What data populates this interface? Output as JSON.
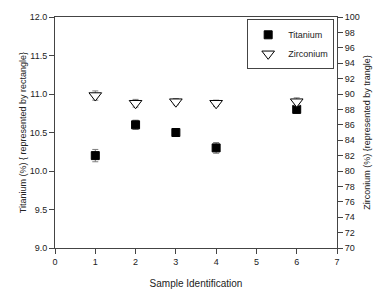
{
  "chart_data": {
    "type": "scatter",
    "x": [
      1,
      2,
      3,
      4,
      6
    ],
    "xlabel": "Sample Identification",
    "ylabel": "Titanium (%) { represented by rectangle}",
    "y2label": "Zirconium (%) {represented by trangle}",
    "xlim": [
      0,
      7
    ],
    "xticks": [
      0,
      1,
      2,
      3,
      4,
      5,
      6,
      7
    ],
    "ylim": [
      9.0,
      12.0
    ],
    "yticks": [
      {
        "value": 9.0,
        "label": "9.0"
      },
      9.5,
      {
        "value": 10.0,
        "label": "10.0"
      },
      10.5,
      {
        "value": 11.0,
        "label": "11.0"
      },
      11.5,
      {
        "value": 12.0,
        "label": "12.0"
      }
    ],
    "y2lim": [
      70,
      100
    ],
    "y2ticks": [
      70,
      72,
      74,
      76,
      78,
      80,
      82,
      84,
      86,
      88,
      90,
      92,
      94,
      96,
      98,
      100
    ],
    "series": [
      {
        "name": "Titanium",
        "color": "black",
        "marker": "square",
        "values": [
          10.2,
          10.6,
          10.5,
          10.3,
          10.8
        ],
        "errors": [
          0.08,
          0.06,
          0.05,
          0.07,
          0.05
        ]
      },
      {
        "name": "Zirconium",
        "color": "white",
        "marker": "triangle-down",
        "axis": "y2",
        "values": [
          89.8,
          88.8,
          89.0,
          88.8,
          89.0
        ],
        "errors": [
          0.6,
          0.5,
          0.4,
          0.4,
          0.5
        ]
      }
    ],
    "grid": false,
    "legend": "upper right"
  }
}
